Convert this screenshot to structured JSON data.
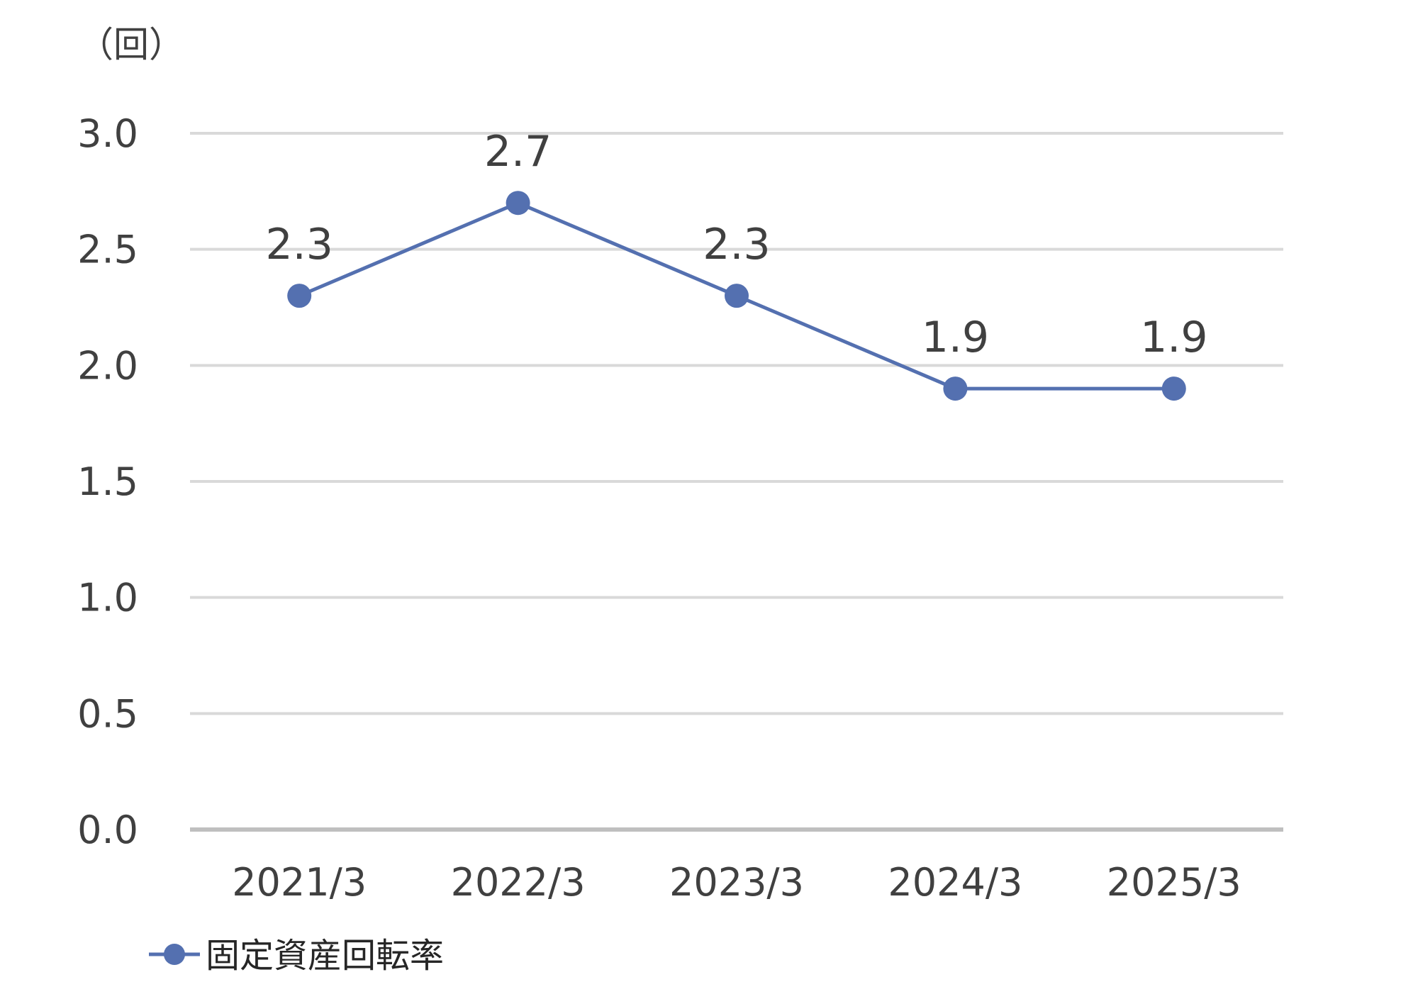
{
  "chart_data": {
    "type": "line",
    "unit_label": "（回）",
    "categories": [
      "2021/3",
      "2022/3",
      "2023/3",
      "2024/3",
      "2025/3"
    ],
    "series": [
      {
        "name": "固定資産回転率",
        "values": [
          2.3,
          2.7,
          2.3,
          1.9,
          1.9
        ],
        "color": "#5470b0"
      }
    ],
    "data_labels": [
      "2.3",
      "2.7",
      "2.3",
      "1.9",
      "1.9"
    ],
    "y_ticks": [
      "0.0",
      "0.5",
      "1.0",
      "1.5",
      "2.0",
      "2.5",
      "3.0"
    ],
    "ylim": [
      0,
      3.0
    ],
    "grid": true,
    "legend_position": "bottom-left",
    "gridline_color": "#d9d9d9",
    "axis_color": "#bfbfbf"
  }
}
